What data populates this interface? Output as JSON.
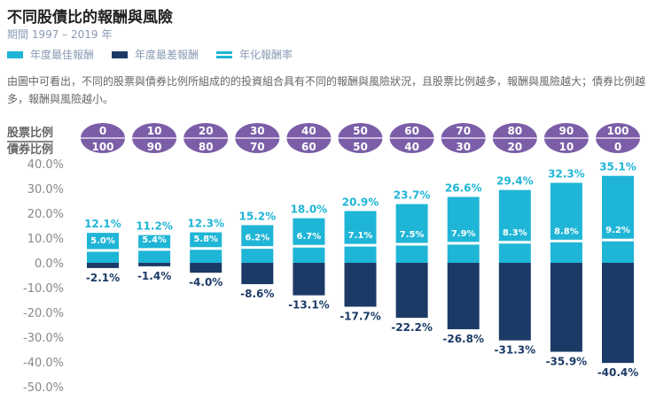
{
  "header": {
    "title": "不同股債比的報酬與風險",
    "period": "期間 1997 – 2019 年",
    "description": "由圖中可看出，不同的股票與債券比例所組成的的投資組合具有不同的報酬與風險狀況，且股票比例越多，報酬與風險越大；債券比例越多，報酬與風險越小。",
    "stock_label": "股票比例",
    "bond_label": "債券比例"
  },
  "colors": {
    "best": "#1fb5d6",
    "worst": "#1c3a66",
    "circle": "#7b5ea7"
  },
  "chart_data": {
    "type": "bar",
    "title": "不同股債比的報酬與風險",
    "legend": [
      "年度最佳報酬",
      "年度最差報酬",
      "年化報酬率"
    ],
    "legend_position": "top-left",
    "stock_pct": [
      "0",
      "10",
      "20",
      "30",
      "40",
      "50",
      "60",
      "70",
      "80",
      "90",
      "100"
    ],
    "bond_pct": [
      "100",
      "90",
      "80",
      "70",
      "60",
      "50",
      "40",
      "30",
      "20",
      "10",
      "0"
    ],
    "series": [
      {
        "name": "年度最佳報酬",
        "values": [
          12.1,
          11.2,
          12.3,
          15.2,
          18.0,
          20.9,
          23.7,
          26.6,
          29.4,
          32.3,
          35.1
        ]
      },
      {
        "name": "年度最差報酬",
        "values": [
          -2.1,
          -1.4,
          -4.0,
          -8.6,
          -13.1,
          -17.7,
          -22.2,
          -26.8,
          -31.3,
          -35.9,
          -40.4
        ]
      },
      {
        "name": "年化報酬率",
        "values": [
          5.0,
          5.4,
          5.8,
          6.2,
          6.7,
          7.1,
          7.5,
          7.9,
          8.3,
          8.8,
          9.2
        ]
      }
    ],
    "yticks": [
      "40.0%",
      "30.0%",
      "20.0%",
      "10.0%",
      "0.0%",
      "-10.0%",
      "-20.0%",
      "-30.0%",
      "-40.0%",
      "-50.0%"
    ],
    "ylim": [
      -50,
      40
    ],
    "grid": false
  }
}
